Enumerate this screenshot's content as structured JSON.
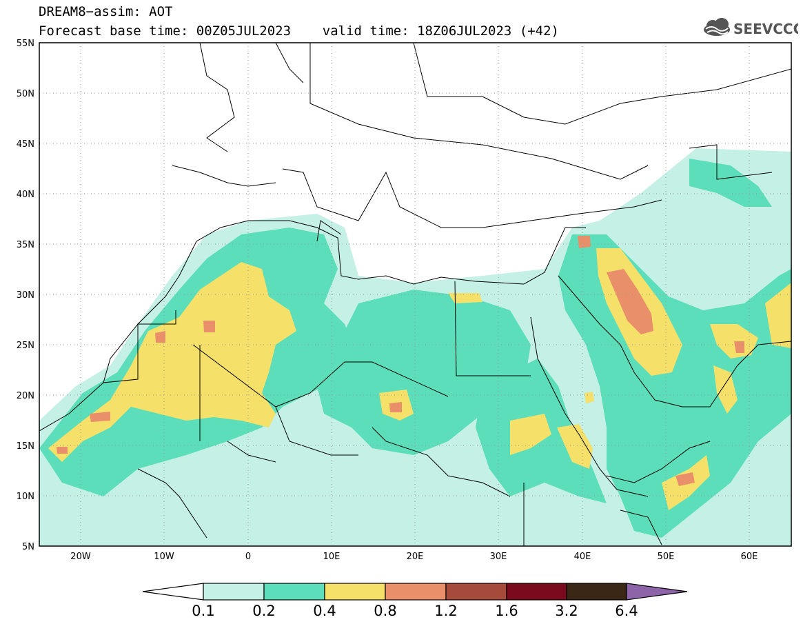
{
  "header": {
    "title_line1": "DREAM8−assim: AOT",
    "title_line2": "Forecast base time: 00Z05JUL2023    valid time: 18Z06JUL2023 (+42)",
    "logo_text": "SEEVCCC"
  },
  "map": {
    "lat_labels": [
      "55N",
      "50N",
      "45N",
      "40N",
      "35N",
      "30N",
      "25N",
      "20N",
      "15N",
      "10N",
      "5N"
    ],
    "lon_labels": [
      "20W",
      "10W",
      "0",
      "10E",
      "20E",
      "30E",
      "40E",
      "50E",
      "60E"
    ],
    "lon_range": [
      -25,
      65
    ],
    "lat_range": [
      5,
      55
    ],
    "grid": true
  },
  "colorbar": {
    "labels": [
      "0.1",
      "0.2",
      "0.4",
      "0.8",
      "1.2",
      "1.6",
      "3.2",
      "6.4"
    ],
    "colors": [
      "#ffffff",
      "#c4f0e6",
      "#5bdeb9",
      "#f5e06a",
      "#e98f69",
      "#a64b3c",
      "#7b0a1f",
      "#3a2614",
      "#8d64a8"
    ]
  }
}
